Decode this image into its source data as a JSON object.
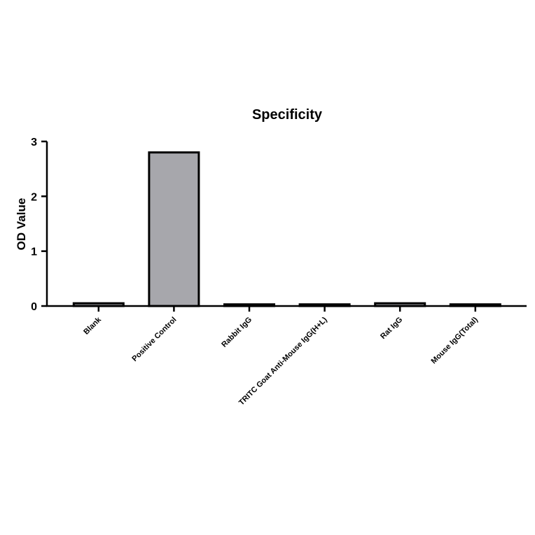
{
  "chart_data": {
    "type": "bar",
    "title": "Specificity",
    "y_label": "OD Value",
    "categories": [
      "Blank",
      "Positive Control",
      "Rabbit IgG",
      "TRITC Goat Anti-Mouse IgG(H+L)",
      "Rat IgG",
      "Mouse IgG(Total)"
    ],
    "values": [
      0.05,
      2.8,
      0.03,
      0.03,
      0.05,
      0.03
    ],
    "color": "#a7a7ac",
    "ylim": [
      0,
      3
    ],
    "yticks": [
      0,
      1,
      2,
      3
    ],
    "grid": false
  }
}
